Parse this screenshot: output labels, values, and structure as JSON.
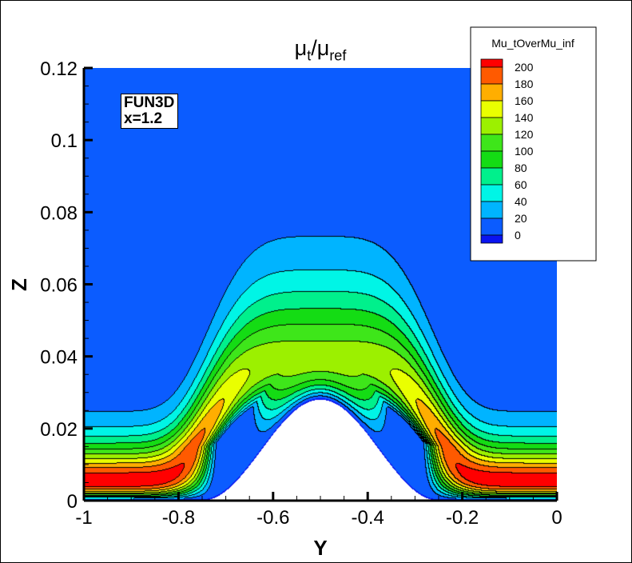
{
  "chart_data": {
    "type": "heatmap",
    "subtype": "filled-contour",
    "title": {
      "symbol": "μ",
      "sub1": "t",
      "sep": "/",
      "sub2": "ref"
    },
    "xlabel": "Y",
    "ylabel": "Z",
    "xlim": [
      -1,
      0
    ],
    "ylim": [
      0,
      0.12
    ],
    "xticks": [
      "-1",
      "-0.8",
      "-0.6",
      "-0.4",
      "-0.2",
      "0"
    ],
    "xtick_values": [
      -1,
      -0.8,
      -0.6,
      -0.4,
      -0.2,
      0
    ],
    "yticks": [
      "0",
      "0.02",
      "0.04",
      "0.06",
      "0.08",
      "0.1",
      "0.12"
    ],
    "ytick_values": [
      0,
      0.02,
      0.04,
      0.06,
      0.08,
      0.1,
      0.12
    ],
    "x_minor_step": 0.05,
    "y_minor_step": 0.005,
    "grid": false,
    "legend": {
      "title": "Mu_tOverMu_inf",
      "placement": "top-right",
      "levels": [
        "200",
        "180",
        "160",
        "140",
        "120",
        "100",
        "80",
        "60",
        "40",
        "20",
        "0"
      ],
      "colors": [
        "#ff0000",
        "#ff5a00",
        "#ffae00",
        "#eaff00",
        "#9cf000",
        "#3ee61a",
        "#14dc14",
        "#00f08c",
        "#00f5e6",
        "#00b4ff",
        "#0b5cff",
        "#0a14f0"
      ]
    },
    "annotation": {
      "line1": "FUN3D",
      "line2": "x=1.2"
    },
    "geometry": {
      "bump_peak_y": -0.5,
      "bump_peak_z": 0.028,
      "bump_extent": [
        -0.75,
        -0.25
      ]
    },
    "field_max": 210
  }
}
